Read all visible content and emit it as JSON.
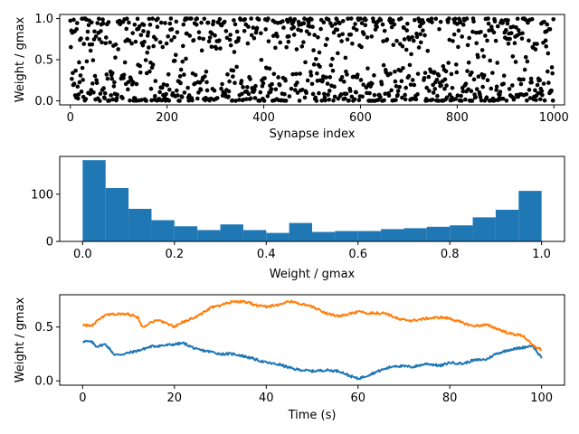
{
  "chart_data": [
    {
      "type": "scatter",
      "title": "",
      "xlabel": "Synapse index",
      "ylabel": "Weight / gmax",
      "xlim": [
        -22,
        1022
      ],
      "ylim": [
        -0.05,
        1.05
      ],
      "xticks": [
        0,
        200,
        400,
        600,
        800,
        1000
      ],
      "yticks": [
        0.0,
        0.5,
        1.0
      ],
      "ytick_labels": [
        "0.0",
        "0.5",
        "1.0"
      ],
      "grid": false,
      "marker_color": "#000000",
      "marker": "circle",
      "n_points": 1000,
      "weight_distribution": "bimodal, concentrated near 0 and 1, sparse in the middle"
    },
    {
      "type": "bar",
      "title": "",
      "xlabel": "Weight / gmax",
      "ylabel": "",
      "xlim": [
        -0.05,
        1.05
      ],
      "ylim": [
        0,
        180
      ],
      "xticks": [
        0.0,
        0.2,
        0.4,
        0.6,
        0.8,
        1.0
      ],
      "xtick_labels": [
        "0.0",
        "0.2",
        "0.4",
        "0.6",
        "0.8",
        "1.0"
      ],
      "yticks": [
        0,
        100
      ],
      "grid": false,
      "bar_color": "#1f77b4",
      "bin_edges": [
        0.0,
        0.05,
        0.1,
        0.15,
        0.2,
        0.25,
        0.3,
        0.35,
        0.4,
        0.45,
        0.5,
        0.55,
        0.6,
        0.65,
        0.7,
        0.75,
        0.8,
        0.85,
        0.9,
        0.95,
        1.0
      ],
      "values": [
        172,
        113,
        69,
        45,
        32,
        24,
        36,
        24,
        18,
        39,
        20,
        22,
        22,
        26,
        28,
        31,
        34,
        51,
        67,
        107
      ]
    },
    {
      "type": "line",
      "title": "",
      "xlabel": "Time (s)",
      "ylabel": "Weight / gmax",
      "xlim": [
        -5,
        105
      ],
      "ylim": [
        -0.04,
        0.8
      ],
      "xticks": [
        0,
        20,
        40,
        60,
        80,
        100
      ],
      "yticks": [
        0.0,
        0.5
      ],
      "ytick_labels": [
        "0.0",
        "0.5"
      ],
      "grid": false,
      "series": [
        {
          "color": "#1f77b4",
          "x": [
            0,
            2,
            3,
            5,
            7,
            9,
            12,
            15,
            18,
            20,
            22,
            25,
            28,
            30,
            33,
            36,
            40,
            43,
            46,
            50,
            53,
            56,
            58,
            60,
            62,
            65,
            68,
            72,
            75,
            78,
            80,
            83,
            85,
            88,
            90,
            93,
            96,
            98,
            100
          ],
          "values": [
            0.37,
            0.36,
            0.32,
            0.34,
            0.24,
            0.25,
            0.28,
            0.32,
            0.33,
            0.34,
            0.35,
            0.29,
            0.27,
            0.25,
            0.25,
            0.22,
            0.17,
            0.15,
            0.11,
            0.09,
            0.1,
            0.09,
            0.05,
            0.02,
            0.05,
            0.1,
            0.14,
            0.13,
            0.16,
            0.14,
            0.17,
            0.16,
            0.19,
            0.2,
            0.25,
            0.29,
            0.31,
            0.33,
            0.21
          ]
        },
        {
          "color": "#ff7f0e",
          "x": [
            0,
            2,
            3,
            5,
            7,
            10,
            12,
            13,
            15,
            17,
            20,
            22,
            25,
            28,
            30,
            33,
            36,
            38,
            40,
            43,
            45,
            48,
            50,
            53,
            56,
            60,
            63,
            66,
            69,
            72,
            75,
            78,
            80,
            82,
            85,
            88,
            90,
            93,
            96,
            98,
            100
          ],
          "values": [
            0.52,
            0.51,
            0.55,
            0.61,
            0.62,
            0.62,
            0.59,
            0.5,
            0.55,
            0.56,
            0.5,
            0.55,
            0.6,
            0.68,
            0.7,
            0.74,
            0.73,
            0.7,
            0.69,
            0.71,
            0.74,
            0.71,
            0.69,
            0.63,
            0.6,
            0.64,
            0.63,
            0.63,
            0.57,
            0.56,
            0.58,
            0.59,
            0.58,
            0.55,
            0.51,
            0.52,
            0.49,
            0.44,
            0.42,
            0.33,
            0.29
          ]
        }
      ]
    }
  ]
}
